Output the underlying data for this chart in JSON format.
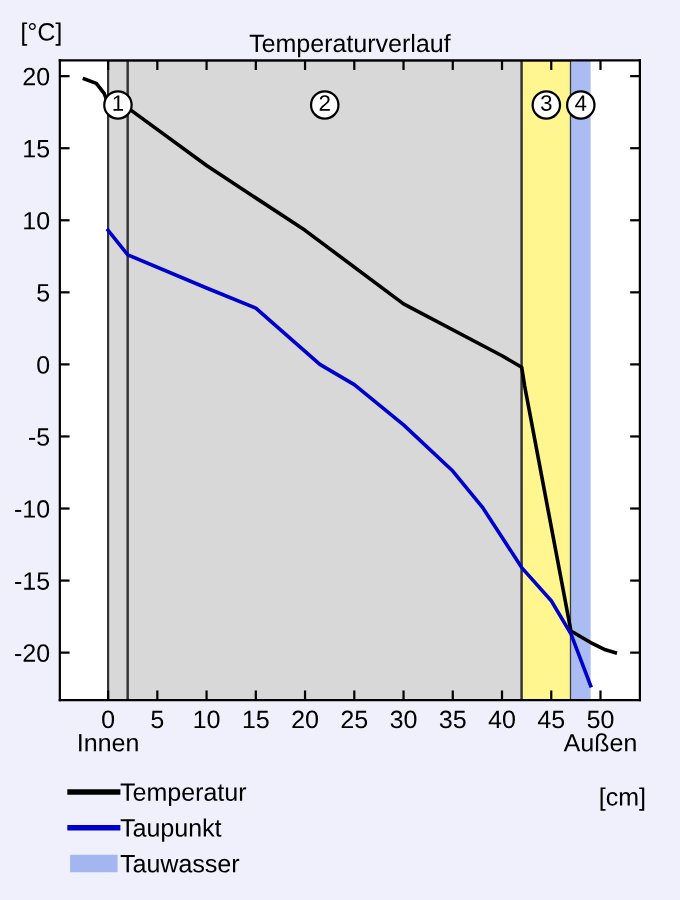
{
  "chart_data": {
    "type": "line",
    "title": "Temperaturverlauf",
    "ylabel": "[°C]",
    "xlabel": "[cm]",
    "xlim": [
      -4.9,
      54
    ],
    "ylim": [
      -23.3,
      21.1
    ],
    "xticks": [
      {
        "value": 0,
        "label": "0\nInnen"
      },
      5,
      10,
      15,
      20,
      25,
      30,
      35,
      40,
      45,
      {
        "value": 50,
        "label": "50\nAußen"
      }
    ],
    "yticks": [
      -20,
      -15,
      -10,
      -5,
      0,
      5,
      10,
      15,
      20
    ],
    "series": [
      {
        "name": "Temperatur",
        "color": "#000000",
        "x": [
          -2.4,
          -1.2,
          -0.4,
          0,
          2,
          10,
          20,
          30,
          40,
          42,
          42.3,
          47,
          49,
          50.5,
          51.5
        ],
        "values": [
          19.8,
          19.5,
          18.8,
          18.1,
          17.8,
          13.8,
          9.3,
          4.2,
          0.6,
          -0.2,
          -1.5,
          -18.5,
          -19.3,
          -19.8,
          -20.0
        ]
      },
      {
        "name": "Taupunkt",
        "color": "#0000cc",
        "x": [
          0,
          2,
          10,
          15,
          20,
          21.5,
          25,
          30,
          35,
          38,
          40,
          42,
          45,
          47,
          49
        ],
        "values": [
          9.3,
          7.6,
          5.3,
          3.9,
          0.9,
          0.0,
          -1.4,
          -4.2,
          -7.4,
          -9.9,
          -12.0,
          -14.1,
          -16.4,
          -18.7,
          -22.3
        ]
      }
    ],
    "bands": [
      {
        "axis": "x",
        "from": 0,
        "to": 2,
        "label": "1",
        "color": "#d8d8d8"
      },
      {
        "axis": "x",
        "from": 2,
        "to": 42,
        "label": "2",
        "color": "#d8d8d8"
      },
      {
        "axis": "x",
        "from": 42,
        "to": 47,
        "label": "3",
        "color": "#fff68f"
      },
      {
        "axis": "x",
        "from": 47,
        "to": 49,
        "label": "Tauwasser",
        "color": "#a3b6f0"
      }
    ],
    "annotations": [
      {
        "text": "4",
        "x": 48,
        "y": 18
      }
    ],
    "grid": false,
    "legend": "bottom left"
  }
}
